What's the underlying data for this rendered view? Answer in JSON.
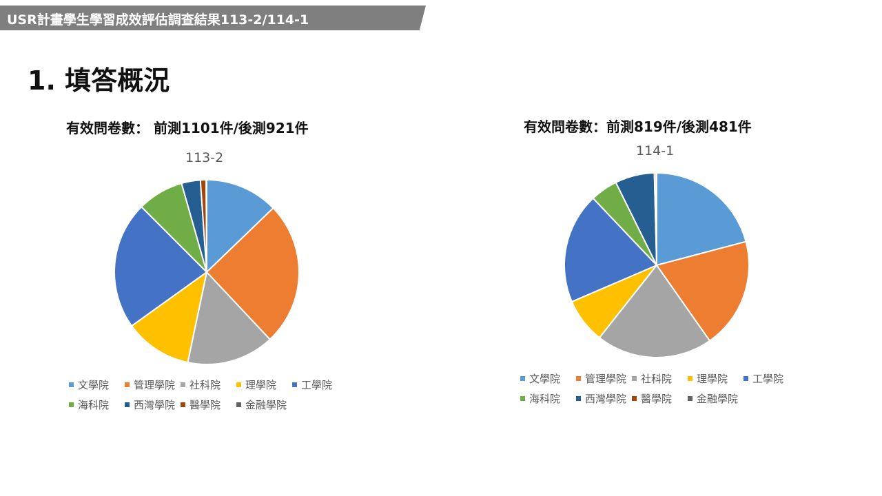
{
  "header": {
    "banner_title": "USR計畫學生學習成效評估調查結果113-2/114-1"
  },
  "section_title": "1. 填答概況",
  "colors": [
    "#5b9bd5",
    "#ed7d31",
    "#a5a5a5",
    "#ffc000",
    "#4472c4",
    "#70ad47",
    "#255e91",
    "#9e480e",
    "#636363"
  ],
  "chart_data": [
    {
      "type": "pie",
      "subtitle": "有效問卷數： 前測1101件/後測921件",
      "title": "113-2",
      "legend_position": "bottom",
      "categories": [
        "文學院",
        "管理學院",
        "社科院",
        "理學院",
        "工學院",
        "海科院",
        "西灣學院",
        "醫學院",
        "金融學院"
      ],
      "values": [
        12.8,
        25.2,
        15.3,
        11.8,
        22.4,
        8.1,
        3.3,
        1.0,
        0.1
      ]
    },
    {
      "type": "pie",
      "subtitle": "有效問卷數：前測819件/後測481件",
      "title": "114-1",
      "legend_position": "bottom",
      "categories": [
        "文學院",
        "管理學院",
        "社科院",
        "理學院",
        "工學院",
        "海科院",
        "西灣學院",
        "醫學院",
        "金融學院"
      ],
      "values": [
        20.9,
        19.4,
        20.4,
        7.9,
        19.4,
        4.8,
        6.9,
        0.3,
        0.1
      ]
    }
  ]
}
